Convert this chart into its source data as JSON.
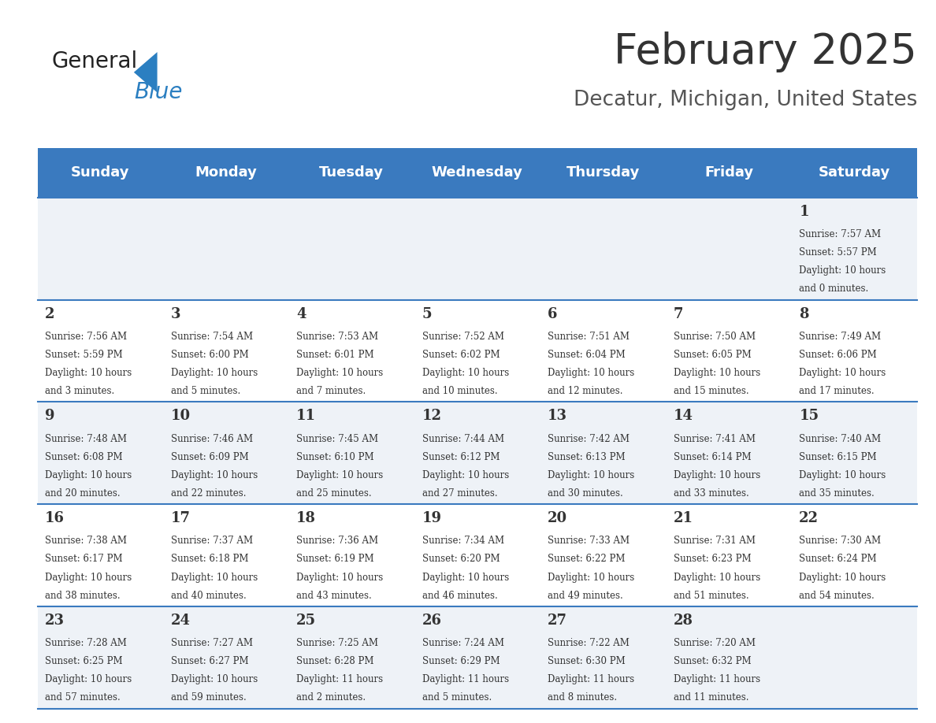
{
  "title": "February 2025",
  "subtitle": "Decatur, Michigan, United States",
  "title_color": "#333333",
  "subtitle_color": "#555555",
  "header_bg_color": "#3a7abf",
  "header_text_color": "#ffffff",
  "cell_bg_even": "#eef2f7",
  "cell_bg_odd": "#ffffff",
  "border_color": "#3a7abf",
  "day_names": [
    "Sunday",
    "Monday",
    "Tuesday",
    "Wednesday",
    "Thursday",
    "Friday",
    "Saturday"
  ],
  "days": [
    {
      "day": 1,
      "col": 6,
      "row": 0,
      "sunrise": "7:57 AM",
      "sunset": "5:57 PM",
      "daylight_hours": 10,
      "daylight_minutes": 0
    },
    {
      "day": 2,
      "col": 0,
      "row": 1,
      "sunrise": "7:56 AM",
      "sunset": "5:59 PM",
      "daylight_hours": 10,
      "daylight_minutes": 3
    },
    {
      "day": 3,
      "col": 1,
      "row": 1,
      "sunrise": "7:54 AM",
      "sunset": "6:00 PM",
      "daylight_hours": 10,
      "daylight_minutes": 5
    },
    {
      "day": 4,
      "col": 2,
      "row": 1,
      "sunrise": "7:53 AM",
      "sunset": "6:01 PM",
      "daylight_hours": 10,
      "daylight_minutes": 7
    },
    {
      "day": 5,
      "col": 3,
      "row": 1,
      "sunrise": "7:52 AM",
      "sunset": "6:02 PM",
      "daylight_hours": 10,
      "daylight_minutes": 10
    },
    {
      "day": 6,
      "col": 4,
      "row": 1,
      "sunrise": "7:51 AM",
      "sunset": "6:04 PM",
      "daylight_hours": 10,
      "daylight_minutes": 12
    },
    {
      "day": 7,
      "col": 5,
      "row": 1,
      "sunrise": "7:50 AM",
      "sunset": "6:05 PM",
      "daylight_hours": 10,
      "daylight_minutes": 15
    },
    {
      "day": 8,
      "col": 6,
      "row": 1,
      "sunrise": "7:49 AM",
      "sunset": "6:06 PM",
      "daylight_hours": 10,
      "daylight_minutes": 17
    },
    {
      "day": 9,
      "col": 0,
      "row": 2,
      "sunrise": "7:48 AM",
      "sunset": "6:08 PM",
      "daylight_hours": 10,
      "daylight_minutes": 20
    },
    {
      "day": 10,
      "col": 1,
      "row": 2,
      "sunrise": "7:46 AM",
      "sunset": "6:09 PM",
      "daylight_hours": 10,
      "daylight_minutes": 22
    },
    {
      "day": 11,
      "col": 2,
      "row": 2,
      "sunrise": "7:45 AM",
      "sunset": "6:10 PM",
      "daylight_hours": 10,
      "daylight_minutes": 25
    },
    {
      "day": 12,
      "col": 3,
      "row": 2,
      "sunrise": "7:44 AM",
      "sunset": "6:12 PM",
      "daylight_hours": 10,
      "daylight_minutes": 27
    },
    {
      "day": 13,
      "col": 4,
      "row": 2,
      "sunrise": "7:42 AM",
      "sunset": "6:13 PM",
      "daylight_hours": 10,
      "daylight_minutes": 30
    },
    {
      "day": 14,
      "col": 5,
      "row": 2,
      "sunrise": "7:41 AM",
      "sunset": "6:14 PM",
      "daylight_hours": 10,
      "daylight_minutes": 33
    },
    {
      "day": 15,
      "col": 6,
      "row": 2,
      "sunrise": "7:40 AM",
      "sunset": "6:15 PM",
      "daylight_hours": 10,
      "daylight_minutes": 35
    },
    {
      "day": 16,
      "col": 0,
      "row": 3,
      "sunrise": "7:38 AM",
      "sunset": "6:17 PM",
      "daylight_hours": 10,
      "daylight_minutes": 38
    },
    {
      "day": 17,
      "col": 1,
      "row": 3,
      "sunrise": "7:37 AM",
      "sunset": "6:18 PM",
      "daylight_hours": 10,
      "daylight_minutes": 40
    },
    {
      "day": 18,
      "col": 2,
      "row": 3,
      "sunrise": "7:36 AM",
      "sunset": "6:19 PM",
      "daylight_hours": 10,
      "daylight_minutes": 43
    },
    {
      "day": 19,
      "col": 3,
      "row": 3,
      "sunrise": "7:34 AM",
      "sunset": "6:20 PM",
      "daylight_hours": 10,
      "daylight_minutes": 46
    },
    {
      "day": 20,
      "col": 4,
      "row": 3,
      "sunrise": "7:33 AM",
      "sunset": "6:22 PM",
      "daylight_hours": 10,
      "daylight_minutes": 49
    },
    {
      "day": 21,
      "col": 5,
      "row": 3,
      "sunrise": "7:31 AM",
      "sunset": "6:23 PM",
      "daylight_hours": 10,
      "daylight_minutes": 51
    },
    {
      "day": 22,
      "col": 6,
      "row": 3,
      "sunrise": "7:30 AM",
      "sunset": "6:24 PM",
      "daylight_hours": 10,
      "daylight_minutes": 54
    },
    {
      "day": 23,
      "col": 0,
      "row": 4,
      "sunrise": "7:28 AM",
      "sunset": "6:25 PM",
      "daylight_hours": 10,
      "daylight_minutes": 57
    },
    {
      "day": 24,
      "col": 1,
      "row": 4,
      "sunrise": "7:27 AM",
      "sunset": "6:27 PM",
      "daylight_hours": 10,
      "daylight_minutes": 59
    },
    {
      "day": 25,
      "col": 2,
      "row": 4,
      "sunrise": "7:25 AM",
      "sunset": "6:28 PM",
      "daylight_hours": 11,
      "daylight_minutes": 2
    },
    {
      "day": 26,
      "col": 3,
      "row": 4,
      "sunrise": "7:24 AM",
      "sunset": "6:29 PM",
      "daylight_hours": 11,
      "daylight_minutes": 5
    },
    {
      "day": 27,
      "col": 4,
      "row": 4,
      "sunrise": "7:22 AM",
      "sunset": "6:30 PM",
      "daylight_hours": 11,
      "daylight_minutes": 8
    },
    {
      "day": 28,
      "col": 5,
      "row": 4,
      "sunrise": "7:20 AM",
      "sunset": "6:32 PM",
      "daylight_hours": 11,
      "daylight_minutes": 11
    }
  ],
  "logo_text_general": "General",
  "logo_text_blue": "Blue",
  "logo_text_color_general": "#222222",
  "logo_text_color_blue": "#2b7fc1",
  "logo_triangle_color": "#2b7fc1"
}
